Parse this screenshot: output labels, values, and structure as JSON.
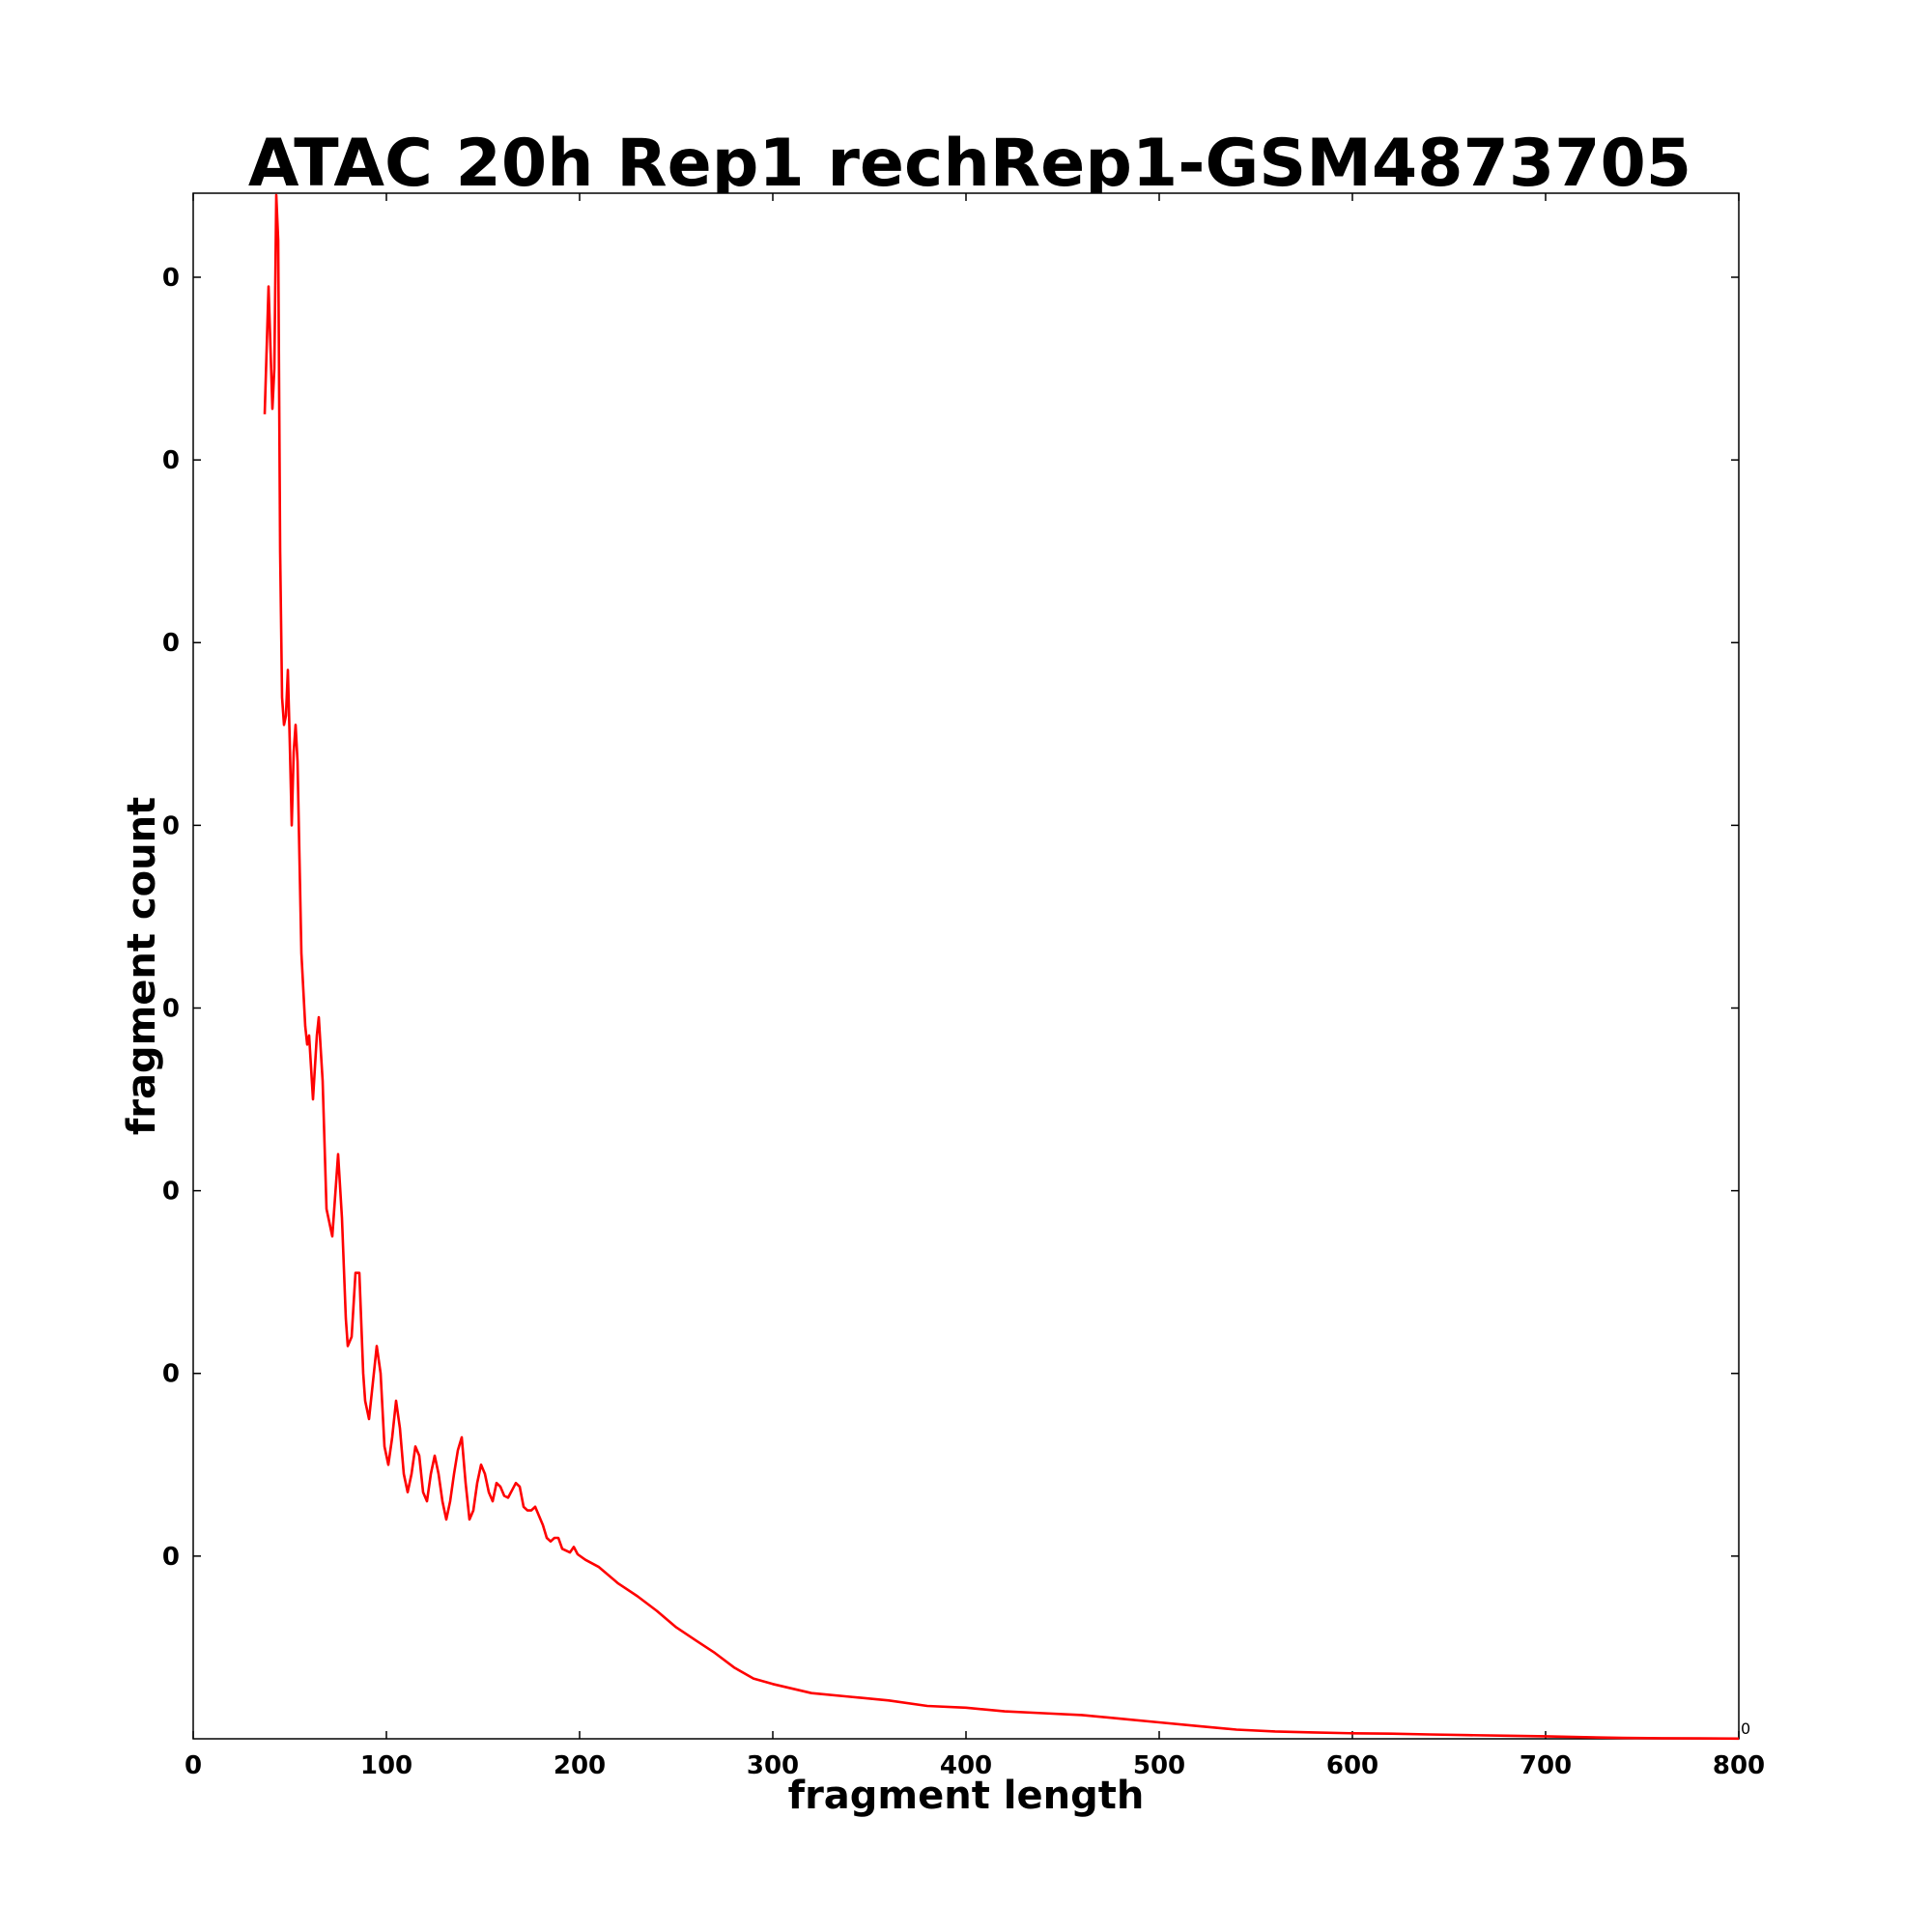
{
  "chart_data": {
    "type": "line",
    "title": "ATAC 20h Rep1 rechRep1-GSM4873705",
    "xlabel": "fragment length",
    "ylabel": "fragment count",
    "xlim": [
      0,
      800
    ],
    "ylim": [
      0,
      8.46
    ],
    "x_ticks": [
      0,
      100,
      200,
      300,
      400,
      500,
      600,
      700,
      800
    ],
    "x_tick_labels": [
      "0",
      "100",
      "200",
      "300",
      "400",
      "500",
      "600",
      "700",
      "800"
    ],
    "y_ticks": [
      1,
      2,
      3,
      4,
      5,
      6,
      7,
      8
    ],
    "y_tick_labels": [
      "0",
      "0",
      "0",
      "0",
      "0",
      "0",
      "0",
      "0"
    ],
    "y_offset_text": "0",
    "grid": false,
    "legend": "none",
    "series": [
      {
        "color": "#ff0000",
        "points": [
          [
            37,
            7.25
          ],
          [
            39,
            7.95
          ],
          [
            41,
            7.28
          ],
          [
            42,
            7.5
          ],
          [
            43,
            8.45
          ],
          [
            44,
            8.2
          ],
          [
            45,
            6.5
          ],
          [
            46,
            5.7
          ],
          [
            47,
            5.55
          ],
          [
            48,
            5.6
          ],
          [
            49,
            5.85
          ],
          [
            50,
            5.45
          ],
          [
            51,
            5.0
          ],
          [
            52,
            5.4
          ],
          [
            53,
            5.55
          ],
          [
            54,
            5.35
          ],
          [
            56,
            4.3
          ],
          [
            58,
            3.9
          ],
          [
            59,
            3.8
          ],
          [
            60,
            3.85
          ],
          [
            62,
            3.5
          ],
          [
            64,
            3.85
          ],
          [
            65,
            3.95
          ],
          [
            67,
            3.6
          ],
          [
            69,
            2.9
          ],
          [
            70,
            2.85
          ],
          [
            72,
            2.75
          ],
          [
            74,
            3.05
          ],
          [
            75,
            3.2
          ],
          [
            77,
            2.85
          ],
          [
            79,
            2.3
          ],
          [
            80,
            2.15
          ],
          [
            82,
            2.2
          ],
          [
            84,
            2.55
          ],
          [
            86,
            2.55
          ],
          [
            88,
            2.0
          ],
          [
            89,
            1.85
          ],
          [
            91,
            1.75
          ],
          [
            93,
            1.95
          ],
          [
            95,
            2.15
          ],
          [
            97,
            2.0
          ],
          [
            99,
            1.6
          ],
          [
            101,
            1.5
          ],
          [
            103,
            1.65
          ],
          [
            105,
            1.85
          ],
          [
            107,
            1.7
          ],
          [
            109,
            1.45
          ],
          [
            111,
            1.35
          ],
          [
            113,
            1.45
          ],
          [
            115,
            1.6
          ],
          [
            117,
            1.55
          ],
          [
            119,
            1.35
          ],
          [
            121,
            1.3
          ],
          [
            123,
            1.45
          ],
          [
            125,
            1.55
          ],
          [
            127,
            1.45
          ],
          [
            129,
            1.3
          ],
          [
            131,
            1.2
          ],
          [
            133,
            1.3
          ],
          [
            135,
            1.45
          ],
          [
            137,
            1.58
          ],
          [
            139,
            1.65
          ],
          [
            141,
            1.4
          ],
          [
            143,
            1.2
          ],
          [
            145,
            1.25
          ],
          [
            147,
            1.4
          ],
          [
            149,
            1.5
          ],
          [
            151,
            1.45
          ],
          [
            153,
            1.35
          ],
          [
            155,
            1.3
          ],
          [
            157,
            1.4
          ],
          [
            159,
            1.38
          ],
          [
            161,
            1.33
          ],
          [
            163,
            1.32
          ],
          [
            165,
            1.36
          ],
          [
            167,
            1.4
          ],
          [
            169,
            1.38
          ],
          [
            171,
            1.27
          ],
          [
            173,
            1.25
          ],
          [
            175,
            1.25
          ],
          [
            177,
            1.27
          ],
          [
            179,
            1.22
          ],
          [
            181,
            1.17
          ],
          [
            183,
            1.1
          ],
          [
            185,
            1.08
          ],
          [
            187,
            1.1
          ],
          [
            189,
            1.1
          ],
          [
            191,
            1.04
          ],
          [
            193,
            1.03
          ],
          [
            195,
            1.02
          ],
          [
            197,
            1.05
          ],
          [
            199,
            1.01
          ],
          [
            203,
            0.98
          ],
          [
            210,
            0.94
          ],
          [
            220,
            0.85
          ],
          [
            230,
            0.78
          ],
          [
            240,
            0.7
          ],
          [
            250,
            0.61
          ],
          [
            260,
            0.54
          ],
          [
            270,
            0.47
          ],
          [
            280,
            0.39
          ],
          [
            290,
            0.33
          ],
          [
            300,
            0.3
          ],
          [
            320,
            0.25
          ],
          [
            340,
            0.23
          ],
          [
            360,
            0.21
          ],
          [
            380,
            0.18
          ],
          [
            400,
            0.17
          ],
          [
            420,
            0.15
          ],
          [
            440,
            0.14
          ],
          [
            460,
            0.13
          ],
          [
            480,
            0.11
          ],
          [
            500,
            0.09
          ],
          [
            520,
            0.07
          ],
          [
            540,
            0.05
          ],
          [
            560,
            0.04
          ],
          [
            580,
            0.035
          ],
          [
            600,
            0.03
          ],
          [
            620,
            0.028
          ],
          [
            640,
            0.024
          ],
          [
            660,
            0.02
          ],
          [
            680,
            0.017
          ],
          [
            700,
            0.014
          ],
          [
            720,
            0.009
          ],
          [
            740,
            0.005
          ],
          [
            760,
            0.003
          ],
          [
            780,
            0.002
          ],
          [
            800,
            0.001
          ]
        ]
      }
    ]
  }
}
